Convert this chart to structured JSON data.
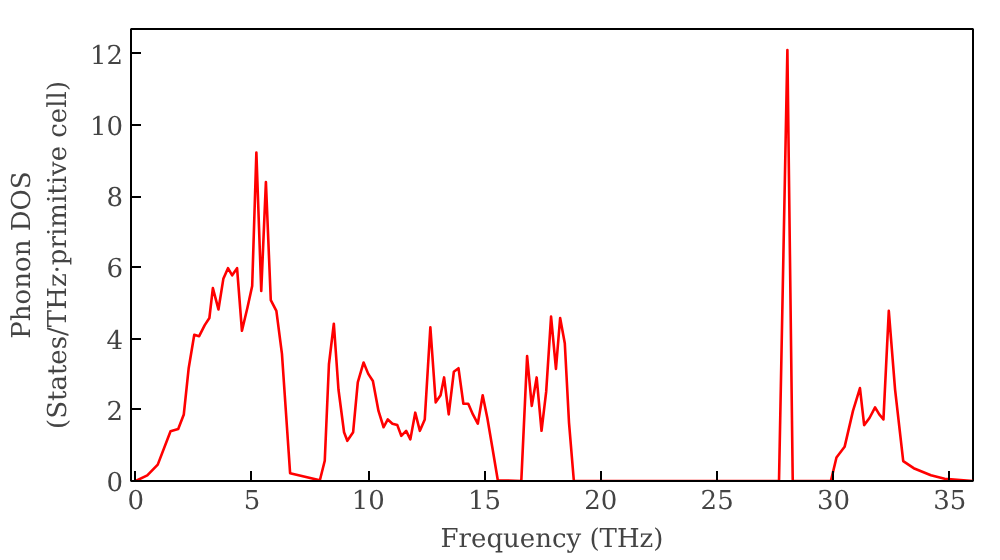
{
  "chart_data": {
    "type": "line",
    "xlabel": "Frequency (THz)",
    "ylabel": "Phonon DOS\n(States/THz·primitive cell)",
    "xlim": [
      -0.2,
      36
    ],
    "ylim": [
      0,
      12.7
    ],
    "xticks": [
      0,
      5,
      10,
      15,
      20,
      25,
      30,
      35
    ],
    "yticks": [
      0,
      2,
      4,
      6,
      8,
      10,
      12
    ],
    "grid": false,
    "series": [
      {
        "color": "#ff0000",
        "x": [
          0,
          0.5,
          0.95,
          1.5,
          1.83,
          2.07,
          2.28,
          2.52,
          2.73,
          2.97,
          3.17,
          3.32,
          3.56,
          3.77,
          3.97,
          4.15,
          4.36,
          4.57,
          4.81,
          5.01,
          5.19,
          5.4,
          5.6,
          5.81,
          6.05,
          6.29,
          6.58,
          6.64,
          7.92,
          8.13,
          8.31,
          8.52,
          8.72,
          8.96,
          9.1,
          9.35,
          9.55,
          9.8,
          10.0,
          10.2,
          10.44,
          10.66,
          10.84,
          11.04,
          11.25,
          11.42,
          11.63,
          11.81,
          12.02,
          12.22,
          12.43,
          12.67,
          12.9,
          13.11,
          13.26,
          13.46,
          13.68,
          13.88,
          14.09,
          14.3,
          14.5,
          14.71,
          14.92,
          15.12,
          15.33,
          15.57,
          16.58,
          16.83,
          17.03,
          17.24,
          17.45,
          17.65,
          17.86,
          18.07,
          18.25,
          18.45,
          18.63,
          18.84,
          27.66,
          28.02,
          28.25,
          29.89,
          30.13,
          30.48,
          30.84,
          31.14,
          31.32,
          31.55,
          31.79,
          31.97,
          32.15,
          32.38,
          32.65,
          33.0,
          33.45,
          34.19,
          34.78,
          36.0
        ],
        "values": [
          0,
          0.16,
          0.46,
          1.4,
          1.46,
          1.87,
          3.17,
          4.11,
          4.07,
          4.38,
          4.58,
          5.42,
          4.82,
          5.68,
          5.98,
          5.78,
          5.98,
          4.22,
          4.88,
          5.48,
          9.23,
          5.34,
          8.4,
          5.08,
          4.78,
          3.57,
          0.8,
          0.22,
          0.02,
          0.57,
          3.28,
          4.42,
          2.57,
          1.37,
          1.13,
          1.37,
          2.77,
          3.33,
          3.01,
          2.81,
          1.97,
          1.51,
          1.73,
          1.61,
          1.57,
          1.27,
          1.41,
          1.17,
          1.92,
          1.41,
          1.73,
          4.32,
          2.21,
          2.41,
          2.91,
          1.87,
          3.07,
          3.17,
          2.17,
          2.17,
          1.87,
          1.61,
          2.41,
          1.77,
          0.96,
          0.02,
          0,
          3.51,
          2.11,
          2.91,
          1.41,
          2.51,
          4.62,
          3.15,
          4.58,
          3.87,
          1.65,
          0,
          0,
          12.11,
          0,
          0,
          0.66,
          0.96,
          1.97,
          2.61,
          1.57,
          1.77,
          2.07,
          1.87,
          1.73,
          4.78,
          2.57,
          0.56,
          0.36,
          0.16,
          0.06,
          0
        ]
      }
    ]
  }
}
